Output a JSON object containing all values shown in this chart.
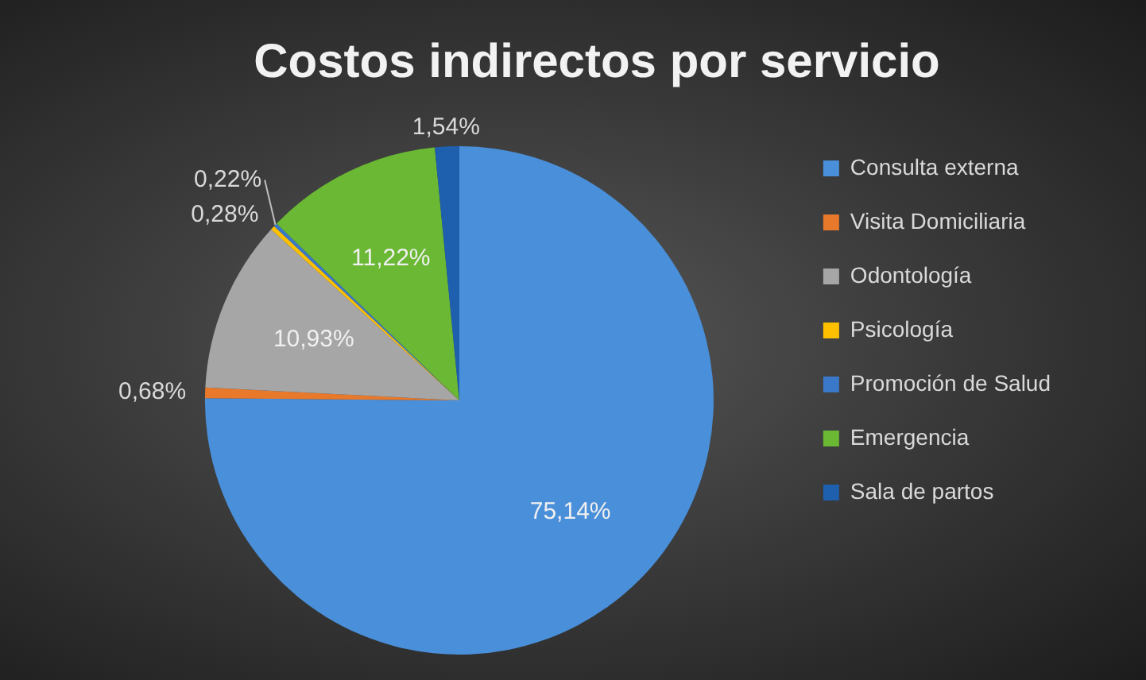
{
  "chart_data": {
    "type": "pie",
    "title": "Costos indirectos por servicio",
    "categories": [
      "Consulta externa",
      "Visita Domiciliaria",
      "Odontología",
      "Psicología",
      "Promoción de Salud",
      "Emergencia",
      "Sala de partos"
    ],
    "values": [
      75.14,
      0.68,
      10.93,
      0.28,
      0.22,
      11.22,
      1.54
    ],
    "colors": [
      "#4a8fd9",
      "#e8792b",
      "#a6a6a6",
      "#ffc000",
      "#3a78c9",
      "#6ab833",
      "#1e5fae"
    ],
    "value_labels": [
      "75,14%",
      "0,68%",
      "10,93%",
      "0,28%",
      "0,22%",
      "11,22%",
      "1,54%"
    ],
    "legend": "right"
  }
}
